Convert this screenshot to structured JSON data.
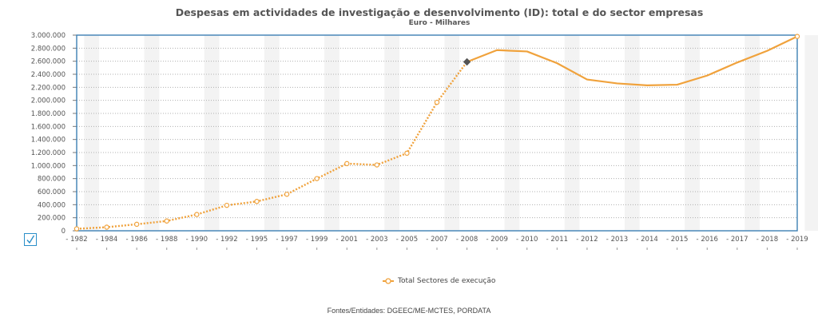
{
  "chart_data": {
    "type": "line",
    "title": "Despesas em actividades de investigação e desenvolvimento (ID): total e do sector empresas",
    "subtitle": "Euro - Milhares",
    "x": [
      "1982",
      "1984",
      "1986",
      "1988",
      "1990",
      "1992",
      "1995",
      "1997",
      "1999",
      "2001",
      "2003",
      "2005",
      "2007",
      "2008",
      "2009",
      "2010",
      "2011",
      "2012",
      "2013",
      "2014",
      "2015",
      "2016",
      "2017",
      "2018",
      "2019"
    ],
    "y_ticks": [
      "0",
      "200.000",
      "400.000",
      "600.000",
      "800.000",
      "1.000.000",
      "1.200.000",
      "1.400.000",
      "1.600.000",
      "1.800.000",
      "2.000.000",
      "2.200.000",
      "2.400.000",
      "2.600.000",
      "2.800.000",
      "3.000.000"
    ],
    "ylim": [
      0,
      3000000
    ],
    "series": [
      {
        "name": "Total Sectores de execução",
        "color": "#f0a23c",
        "values": [
          30000,
          55000,
          100000,
          150000,
          250000,
          390000,
          450000,
          560000,
          800000,
          1030000,
          1010000,
          1190000,
          1970000,
          2590000,
          2770000,
          2750000,
          2570000,
          2320000,
          2260000,
          2230000,
          2240000,
          2380000,
          2580000,
          2760000,
          2980000
        ],
        "estimated_until": "2008",
        "highlighted_point": "2008"
      }
    ],
    "grid": true,
    "legend_position": "bottom-center"
  },
  "legend": {
    "label": "Total Sectores de execução"
  },
  "source_text": "Fontes/Entidades: DGEEC/ME-MCTES, PORDATA",
  "checkbox_icon": "checkmark-icon"
}
